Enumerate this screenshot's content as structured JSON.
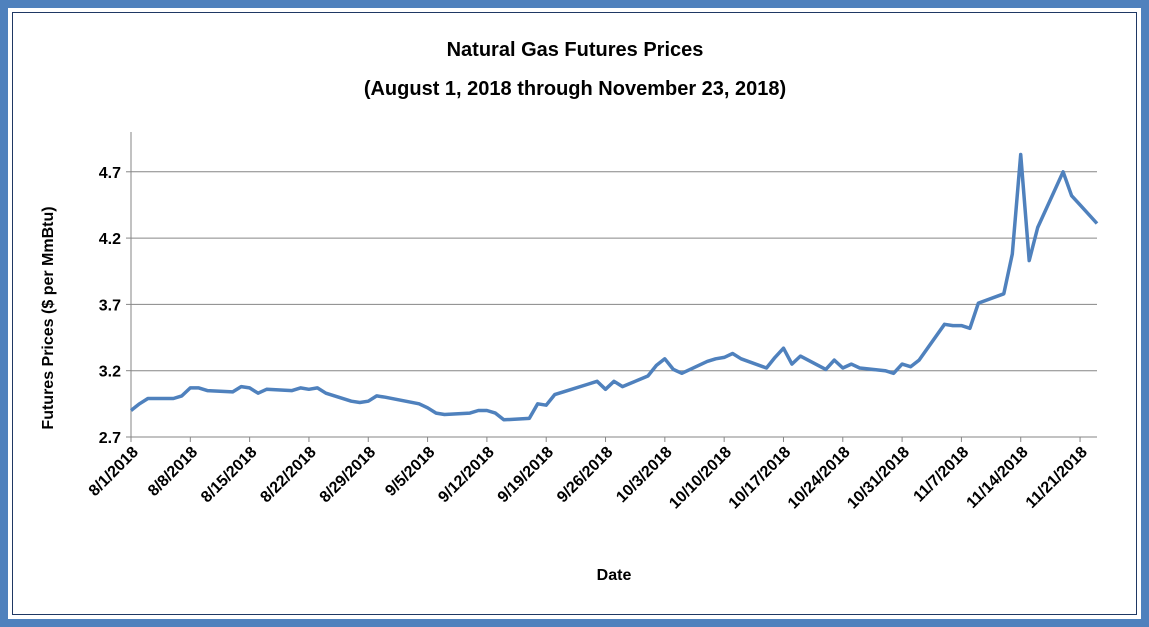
{
  "chart_data": {
    "type": "line",
    "title": "Natural Gas Futures Prices",
    "subtitle": "(August 1, 2018 through November 23, 2018)",
    "x_label": "Date",
    "y_label": "Futures Prices ($ per MmBtu)",
    "color": "#4f81bd",
    "x": [
      "8/1/2018",
      "8/2/2018",
      "8/3/2018",
      "8/6/2018",
      "8/7/2018",
      "8/8/2018",
      "8/9/2018",
      "8/10/2018",
      "8/13/2018",
      "8/14/2018",
      "8/15/2018",
      "8/16/2018",
      "8/17/2018",
      "8/20/2018",
      "8/21/2018",
      "8/22/2018",
      "8/23/2018",
      "8/24/2018",
      "8/27/2018",
      "8/28/2018",
      "8/29/2018",
      "8/30/2018",
      "8/31/2018",
      "9/4/2018",
      "9/5/2018",
      "9/6/2018",
      "9/7/2018",
      "9/10/2018",
      "9/11/2018",
      "9/12/2018",
      "9/13/2018",
      "9/14/2018",
      "9/17/2018",
      "9/18/2018",
      "9/19/2018",
      "9/20/2018",
      "9/21/2018",
      "9/24/2018",
      "9/25/2018",
      "9/26/2018",
      "9/27/2018",
      "9/28/2018",
      "10/1/2018",
      "10/2/2018",
      "10/3/2018",
      "10/4/2018",
      "10/5/2018",
      "10/8/2018",
      "10/9/2018",
      "10/10/2018",
      "10/11/2018",
      "10/12/2018",
      "10/15/2018",
      "10/16/2018",
      "10/17/2018",
      "10/18/2018",
      "10/19/2018",
      "10/22/2018",
      "10/23/2018",
      "10/24/2018",
      "10/25/2018",
      "10/26/2018",
      "10/29/2018",
      "10/30/2018",
      "10/31/2018",
      "11/1/2018",
      "11/2/2018",
      "11/5/2018",
      "11/6/2018",
      "11/7/2018",
      "11/8/2018",
      "11/9/2018",
      "11/12/2018",
      "11/13/2018",
      "11/14/2018",
      "11/15/2018",
      "11/16/2018",
      "11/19/2018",
      "11/20/2018",
      "11/21/2018",
      "11/23/2018"
    ],
    "values": [
      2.9,
      2.95,
      2.99,
      2.99,
      3.01,
      3.07,
      3.07,
      3.05,
      3.04,
      3.08,
      3.07,
      3.03,
      3.06,
      3.05,
      3.07,
      3.06,
      3.07,
      3.03,
      2.97,
      2.96,
      2.97,
      3.01,
      3.0,
      2.95,
      2.92,
      2.88,
      2.87,
      2.88,
      2.9,
      2.9,
      2.88,
      2.83,
      2.84,
      2.95,
      2.94,
      3.02,
      3.04,
      3.1,
      3.12,
      3.06,
      3.12,
      3.08,
      3.16,
      3.24,
      3.29,
      3.21,
      3.18,
      3.27,
      3.29,
      3.3,
      3.33,
      3.29,
      3.22,
      3.3,
      3.37,
      3.25,
      3.31,
      3.21,
      3.28,
      3.22,
      3.25,
      3.22,
      3.2,
      3.18,
      3.25,
      3.23,
      3.28,
      3.55,
      3.54,
      3.54,
      3.52,
      3.71,
      3.78,
      4.08,
      4.83,
      4.03,
      4.28,
      4.7,
      4.52,
      4.45,
      4.31
    ],
    "xlim": [
      "8/1/2018",
      "11/23/2018"
    ],
    "xticks": [
      "8/1/2018",
      "8/8/2018",
      "8/15/2018",
      "8/22/2018",
      "8/29/2018",
      "9/5/2018",
      "9/12/2018",
      "9/19/2018",
      "9/26/2018",
      "10/3/2018",
      "10/10/2018",
      "10/17/2018",
      "10/24/2018",
      "10/31/2018",
      "11/7/2018",
      "11/14/2018",
      "11/21/2018"
    ],
    "ylim": [
      2.7,
      5.0
    ],
    "yticks": [
      2.7,
      3.2,
      3.7,
      4.2,
      4.7
    ],
    "grid": true
  }
}
